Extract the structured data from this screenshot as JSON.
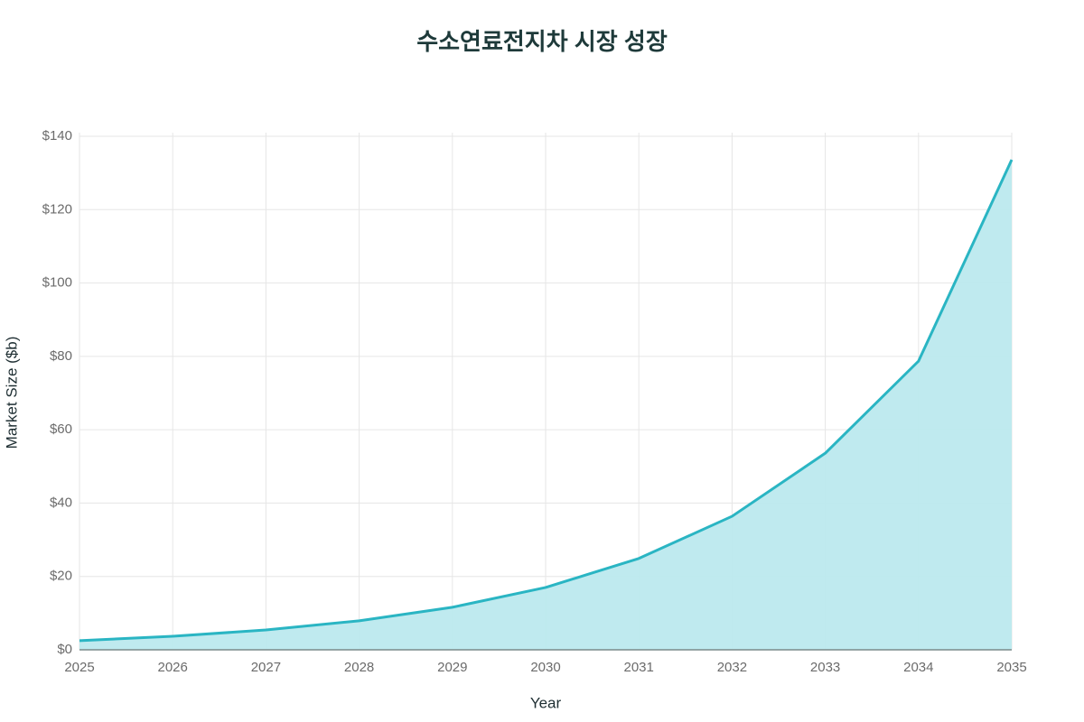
{
  "chart_data": {
    "type": "area",
    "title": "수소연료전지차 시장 성장",
    "x_label": "Year",
    "y_label": "Market Size ($b)",
    "x": [
      2025,
      2026,
      2027,
      2028,
      2029,
      2030,
      2031,
      2032,
      2033,
      2034,
      2035
    ],
    "series": [
      {
        "name": "Market Size",
        "color": "#2ab5c3",
        "fill": "#bce9ee",
        "values": [
          2.5,
          3.7,
          5.4,
          7.9,
          11.6,
          17.0,
          24.9,
          36.4,
          53.6,
          78.7,
          133.6
        ]
      }
    ],
    "xlim": [
      2025,
      2035
    ],
    "xticks": [
      2025,
      2026,
      2027,
      2028,
      2029,
      2030,
      2031,
      2032,
      2033,
      2034,
      2035
    ],
    "ylim": [
      0,
      140
    ],
    "yticks": [
      {
        "value": 0,
        "label": "$0"
      },
      {
        "value": 20,
        "label": "$20"
      },
      {
        "value": 40,
        "label": "$40"
      },
      {
        "value": 60,
        "label": "$60"
      },
      {
        "value": 80,
        "label": "$80"
      },
      {
        "value": 100,
        "label": "$100"
      },
      {
        "value": 120,
        "label": "$120"
      },
      {
        "value": 140,
        "label": "$140"
      }
    ],
    "grid": true
  }
}
